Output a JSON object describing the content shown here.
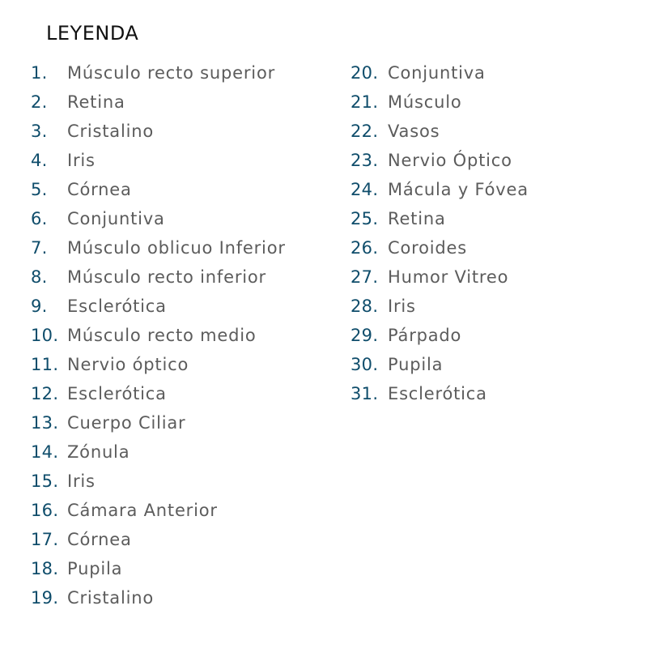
{
  "legend": {
    "title": "LEYENDA",
    "items": [
      {
        "number": "1.",
        "label": "Músculo recto superior"
      },
      {
        "number": "2.",
        "label": "Retina"
      },
      {
        "number": "3.",
        "label": "Cristalino"
      },
      {
        "number": "4.",
        "label": "Iris"
      },
      {
        "number": "5.",
        "label": "Córnea"
      },
      {
        "number": "6.",
        "label": "Conjuntiva"
      },
      {
        "number": "7.",
        "label": "Músculo oblicuo Inferior"
      },
      {
        "number": "8.",
        "label": "Músculo recto inferior"
      },
      {
        "number": "9.",
        "label": "Esclerótica"
      },
      {
        "number": "10.",
        "label": "Músculo recto medio"
      },
      {
        "number": "11.",
        "label": "Nervio óptico"
      },
      {
        "number": "12.",
        "label": "Esclerótica"
      },
      {
        "number": "13.",
        "label": "Cuerpo Ciliar"
      },
      {
        "number": "14.",
        "label": "Zónula"
      },
      {
        "number": "15.",
        "label": "Iris"
      },
      {
        "number": "16.",
        "label": "Cámara Anterior"
      },
      {
        "number": "17.",
        "label": "Córnea"
      },
      {
        "number": "18.",
        "label": "Pupila"
      },
      {
        "number": "19.",
        "label": "Cristalino"
      },
      {
        "number": "20.",
        "label": "Conjuntiva"
      },
      {
        "number": "21.",
        "label": "Músculo"
      },
      {
        "number": "22.",
        "label": "Vasos"
      },
      {
        "number": "23.",
        "label": "Nervio Óptico"
      },
      {
        "number": "24.",
        "label": "Mácula y Fóvea"
      },
      {
        "number": "25.",
        "label": "Retina"
      },
      {
        "number": "26.",
        "label": "Coroides"
      },
      {
        "number": "27.",
        "label": "Humor Vitreo"
      },
      {
        "number": "28.",
        "label": "Iris"
      },
      {
        "number": "29.",
        "label": "Párpado"
      },
      {
        "number": "30.",
        "label": "Pupila"
      },
      {
        "number": "31.",
        "label": "Esclerótica"
      }
    ]
  },
  "colors": {
    "number": "#0f4d6b",
    "label": "#5c5c5c",
    "title": "#111111"
  }
}
